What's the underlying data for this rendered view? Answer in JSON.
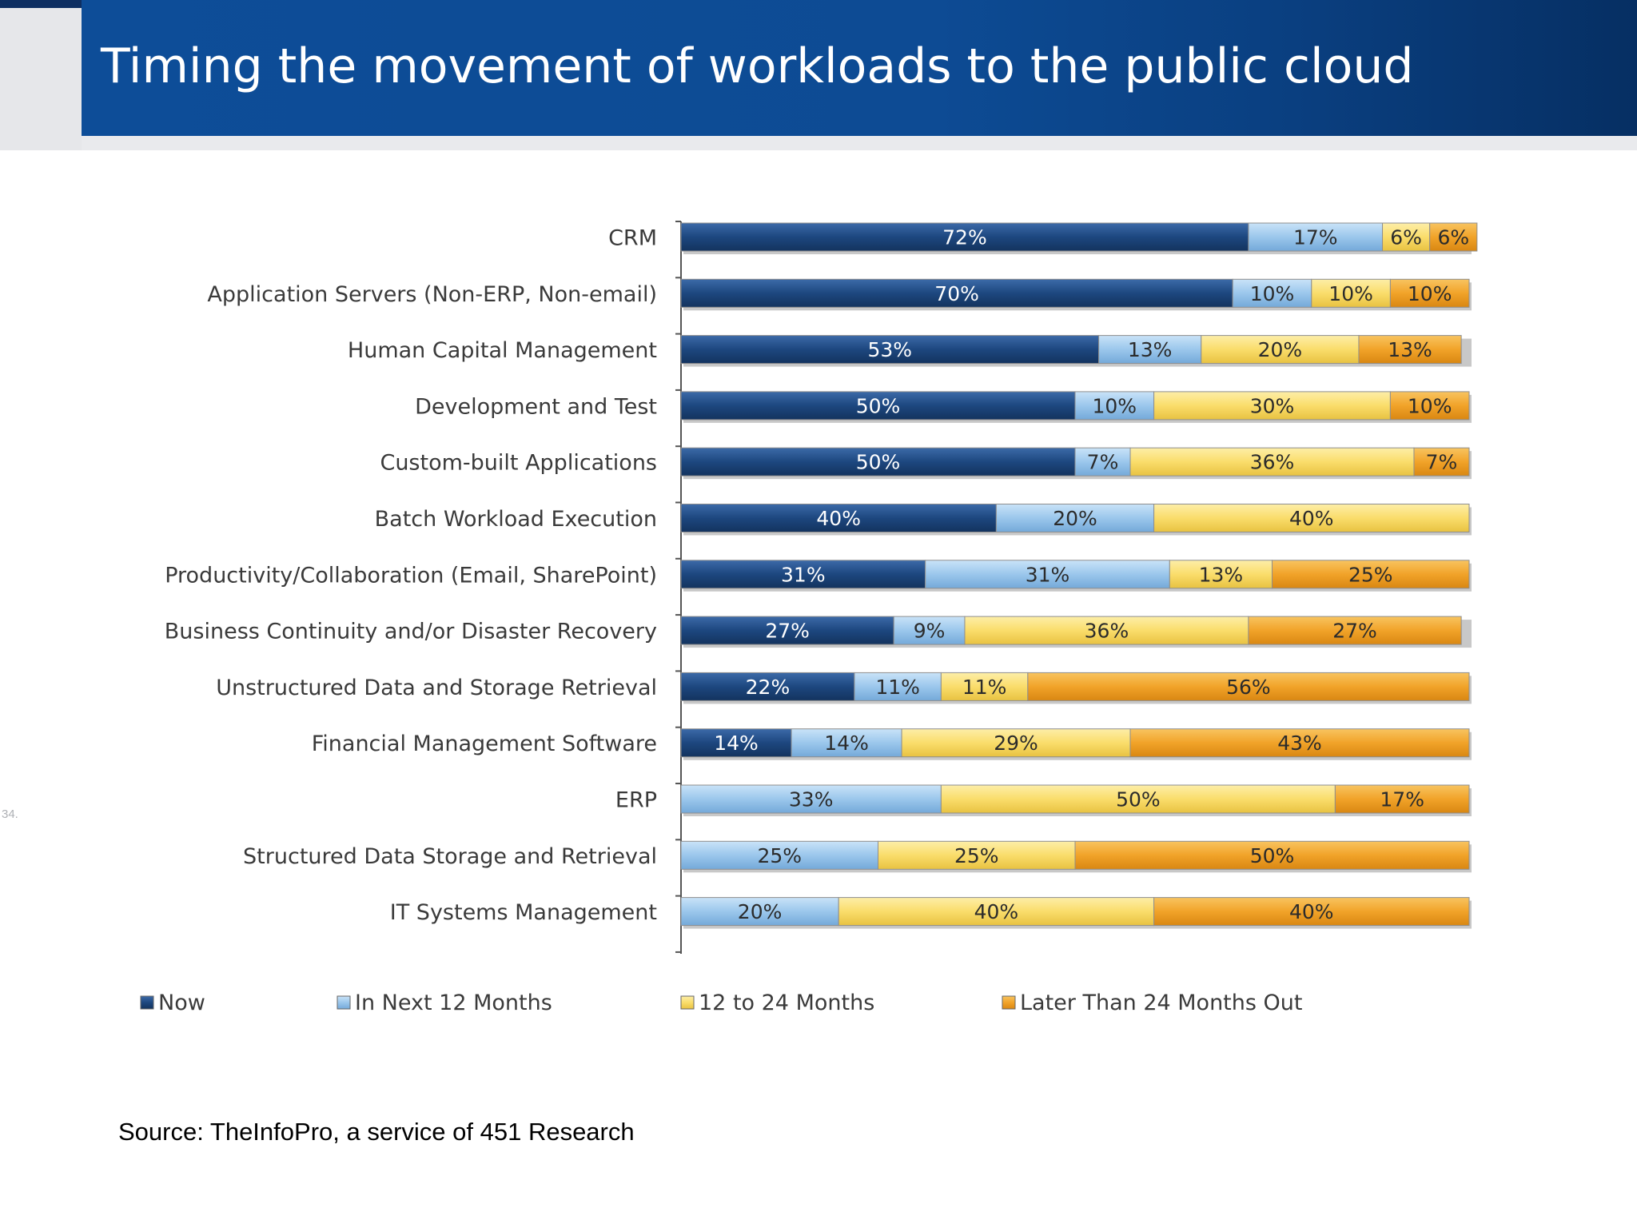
{
  "slide": {
    "title": "Timing the movement of workloads to the public cloud",
    "page_number": "34.",
    "source": "Source: TheInfoPro, a service of 451 Research"
  },
  "colors": {
    "title_bar": "#0d4b94",
    "Now": "#1d477f",
    "In Next 12 Months": "#9bc7ec",
    "12 to 24 Months": "#fadd6b",
    "Later Than 24 Months Out": "#f1a329"
  },
  "chart_data": {
    "type": "bar",
    "orientation": "horizontal",
    "stacked": true,
    "value_format": "percent",
    "xlim": [
      0,
      100
    ],
    "legend_position": "bottom",
    "grid": false,
    "categories": [
      "CRM",
      "Application Servers (Non-ERP, Non-email)",
      "Human Capital Management",
      "Development and Test",
      "Custom-built Applications",
      "Batch Workload Execution",
      "Productivity/Collaboration (Email, SharePoint)",
      "Business Continuity and/or Disaster Recovery",
      "Unstructured Data and Storage Retrieval",
      "Financial Management Software",
      "ERP",
      "Structured Data Storage and Retrieval",
      "IT Systems Management"
    ],
    "series": [
      {
        "name": "Now",
        "values": [
          72,
          70,
          53,
          50,
          50,
          40,
          31,
          27,
          22,
          14,
          0,
          0,
          0
        ]
      },
      {
        "name": "In Next 12 Months",
        "values": [
          17,
          10,
          13,
          10,
          7,
          20,
          31,
          9,
          11,
          14,
          33,
          25,
          20
        ]
      },
      {
        "name": "12 to 24 Months",
        "values": [
          6,
          10,
          20,
          30,
          36,
          40,
          13,
          36,
          11,
          29,
          50,
          25,
          40
        ]
      },
      {
        "name": "Later Than 24 Months Out",
        "values": [
          6,
          10,
          13,
          10,
          7,
          0,
          25,
          27,
          56,
          43,
          17,
          50,
          40
        ]
      }
    ]
  }
}
